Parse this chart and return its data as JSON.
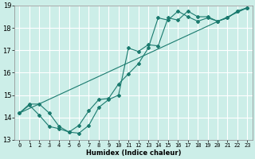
{
  "title": "",
  "xlabel": "Humidex (Indice chaleur)",
  "bg_color": "#cceee8",
  "grid_color": "#ffffff",
  "line_color": "#1a7a6e",
  "xlim": [
    -0.5,
    23.5
  ],
  "ylim": [
    13,
    19
  ],
  "xticks": [
    0,
    1,
    2,
    3,
    4,
    5,
    6,
    7,
    8,
    9,
    10,
    11,
    12,
    13,
    14,
    15,
    16,
    17,
    18,
    19,
    20,
    21,
    22,
    23
  ],
  "yticks": [
    13,
    14,
    15,
    16,
    17,
    18,
    19
  ],
  "lines": [
    {
      "x": [
        0,
        1,
        2,
        3,
        4,
        5,
        6,
        7,
        8,
        9,
        10,
        11,
        12,
        13,
        14,
        15,
        16,
        17,
        18,
        19,
        20,
        21,
        22,
        23
      ],
      "y": [
        14.2,
        14.6,
        14.6,
        14.2,
        13.6,
        13.35,
        13.3,
        13.65,
        14.45,
        14.8,
        15.0,
        17.1,
        16.95,
        17.25,
        17.2,
        18.45,
        18.35,
        18.75,
        18.5,
        18.5,
        18.3,
        18.45,
        18.75,
        18.9
      ]
    },
    {
      "x": [
        0,
        1,
        2,
        3,
        4,
        5,
        6,
        7,
        8,
        9,
        10,
        11,
        12,
        13,
        14,
        15,
        16,
        17,
        18,
        19,
        20,
        21,
        22,
        23
      ],
      "y": [
        14.2,
        14.55,
        14.1,
        13.6,
        13.5,
        13.35,
        13.65,
        14.3,
        14.8,
        14.85,
        15.5,
        15.95,
        16.4,
        17.1,
        18.45,
        18.35,
        18.75,
        18.5,
        18.3,
        18.45,
        18.3,
        18.45,
        18.75,
        18.9
      ]
    },
    {
      "x": [
        0,
        23
      ],
      "y": [
        14.2,
        18.9
      ]
    }
  ],
  "marker": "D",
  "markersize": 2.0,
  "linewidth": 0.8,
  "xlabel_fontsize": 6,
  "tick_fontsize": 5,
  "ylabel_fontsize": 6
}
